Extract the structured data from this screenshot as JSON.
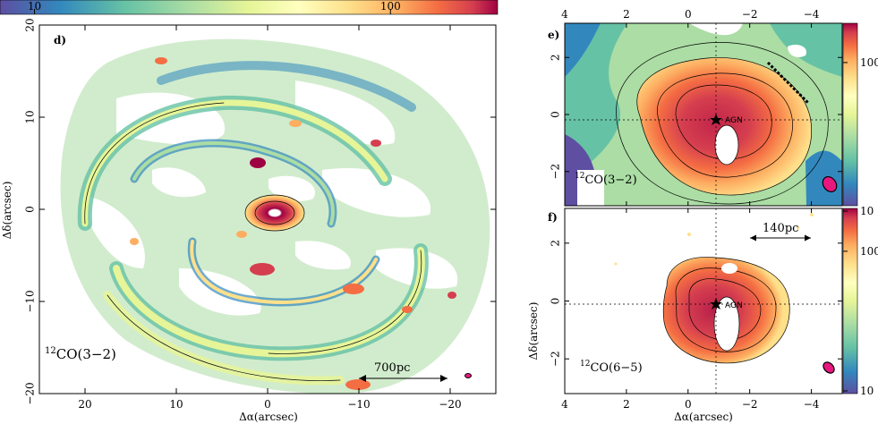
{
  "chart_data": [
    {
      "type": "heatmap",
      "panel_letter": "d)",
      "species_label": {
        "sup": "12",
        "main": "CO(3−2)"
      },
      "scale_bar": "700pc",
      "xlabel": "Δα(arcsec)",
      "ylabel": "Δδ(arcsec)",
      "xlim": [
        25,
        -25
      ],
      "ylim": [
        -20,
        20
      ],
      "x_ticks": [
        20,
        10,
        0,
        -10,
        -20
      ],
      "x_tick_labels": [
        "20",
        "10",
        "0",
        "−10",
        "−20"
      ],
      "y_ticks": [
        20,
        10,
        0,
        -10,
        -20
      ],
      "y_tick_labels": [
        "20",
        "10",
        "0",
        "−10",
        "−20"
      ],
      "colorbar": {
        "scale": "log",
        "range": [
          8,
          200
        ],
        "tick_values": [
          10,
          100
        ],
        "tick_labels": [
          "10",
          "100"
        ],
        "position": "top"
      }
    },
    {
      "type": "heatmap",
      "panel_letter": "e)",
      "species_label": {
        "sup": "12",
        "main": "CO(3−2)"
      },
      "agn_label": "AGN",
      "xlim": [
        4,
        -5
      ],
      "ylim": [
        -3.2,
        3.2
      ],
      "x_ticks": [
        4,
        2,
        0,
        -2,
        -4
      ],
      "x_tick_labels": [
        "4",
        "2",
        "0",
        "−2",
        "−4"
      ],
      "y_ticks": [
        2,
        0,
        -2
      ],
      "y_tick_labels": [
        "2",
        "0",
        "−2"
      ],
      "colorbar": {
        "scale": "log",
        "range": [
          8,
          200
        ],
        "tick_values": [
          100
        ],
        "tick_labels": [
          "100"
        ],
        "position": "right"
      }
    },
    {
      "type": "heatmap",
      "panel_letter": "f)",
      "species_label": {
        "sup": "12",
        "main": "CO(6−5)"
      },
      "agn_label": "AGN",
      "scale_bar": "140pc",
      "xlabel": "Δα(arcsec)",
      "ylabel": "Δδ(arcsec)",
      "xlim": [
        4,
        -5
      ],
      "ylim": [
        -3.2,
        3.2
      ],
      "x_ticks": [
        4,
        2,
        0,
        -2,
        -4
      ],
      "x_tick_labels": [
        "4",
        "2",
        "0",
        "−2",
        "−4"
      ],
      "y_ticks": [
        2,
        0,
        -2
      ],
      "y_tick_labels": [
        "2",
        "0",
        "−2"
      ],
      "colorbar": {
        "scale": "log",
        "range": [
          10,
          200
        ],
        "tick_values": [
          10,
          100,
          10
        ],
        "tick_labels": [
          "10",
          "100",
          "10"
        ],
        "position": "right"
      }
    }
  ],
  "colors": {
    "map_low": "#5e4fa2",
    "map_mid": "#ffffbf",
    "map_high": "#9e0142",
    "beam": "#e8177f"
  }
}
